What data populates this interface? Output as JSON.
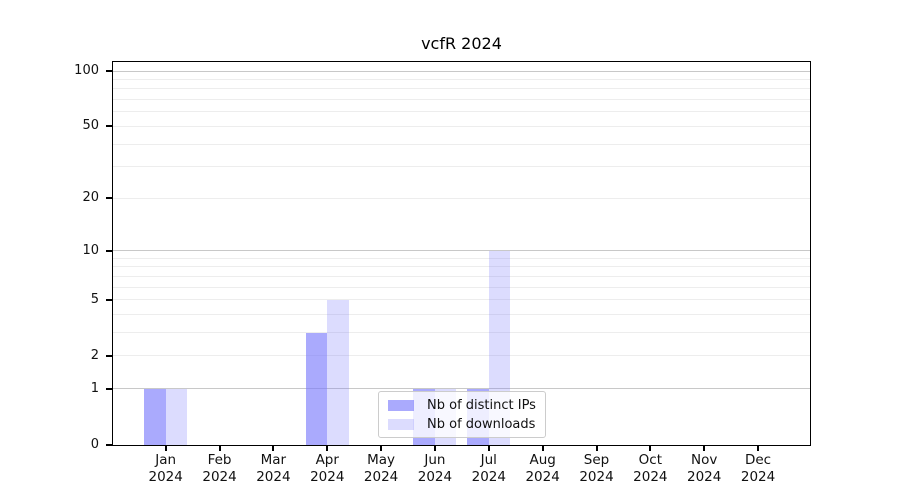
{
  "chart_data": {
    "type": "bar",
    "title": "vcfR 2024",
    "x_categories": [
      "Jan",
      "Feb",
      "Mar",
      "Apr",
      "May",
      "Jun",
      "Jul",
      "Aug",
      "Sep",
      "Oct",
      "Nov",
      "Dec"
    ],
    "x_year": "2024",
    "series": [
      {
        "name": "Nb of distinct IPs",
        "color": "rgba(120,120,252,0.63)",
        "color_hex_on_white": "#aaaafc",
        "values": [
          1,
          0,
          0,
          3,
          0,
          1,
          1,
          0,
          0,
          0,
          0,
          0
        ]
      },
      {
        "name": "Nb of downloads",
        "color": "rgba(120,120,252,0.26)",
        "color_hex_on_white": "#dbdbfc",
        "values": [
          1,
          0,
          0,
          5,
          0,
          1,
          10,
          0,
          0,
          0,
          0,
          0
        ]
      }
    ],
    "yscale": "log10(1+x)",
    "ylim": [
      0,
      112
    ],
    "ytick_values": [
      0,
      1,
      2,
      5,
      10,
      20,
      50,
      100
    ],
    "y_major_gridlines": [
      1,
      10,
      100
    ],
    "y_minor_gridlines": [
      2,
      3,
      4,
      5,
      6,
      7,
      8,
      9,
      20,
      30,
      40,
      50,
      60,
      70,
      80,
      90
    ],
    "grid": "horizontal",
    "legend_position": "inside-bottom-center",
    "colors": {
      "major_grid": "#c8c8c8",
      "minor_grid": "#ededed",
      "axis": "#000000",
      "text": "#111111",
      "background": "#ffffff"
    }
  }
}
